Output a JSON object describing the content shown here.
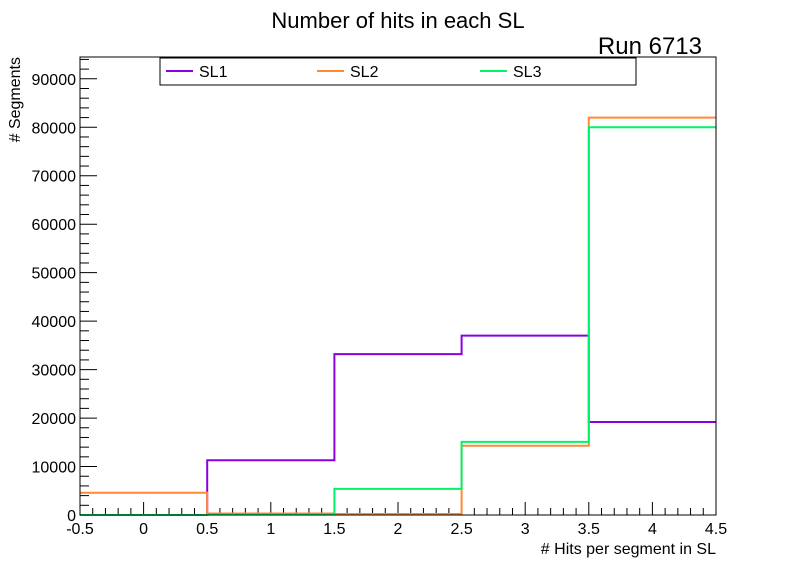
{
  "chart_data": {
    "type": "histogram",
    "title": "Number of hits in each SL",
    "annotation": "Run 6713",
    "xlabel": "# Hits per segment in SL",
    "ylabel": "# Segments",
    "xlim": [
      -0.5,
      4.5
    ],
    "ylim": [
      0,
      94500
    ],
    "x_ticks": [
      "-0.5",
      "0",
      "0.5",
      "1",
      "1.5",
      "2",
      "2.5",
      "3",
      "3.5",
      "4",
      "4.5"
    ],
    "y_ticks": [
      "0",
      "10000",
      "20000",
      "30000",
      "40000",
      "50000",
      "60000",
      "70000",
      "80000",
      "90000"
    ],
    "bin_edges": [
      -0.5,
      0.5,
      1.5,
      2.5,
      3.5,
      4.5
    ],
    "series": [
      {
        "name": "SL1",
        "color": "#8b00e0",
        "values": [
          0,
          11300,
          33200,
          37000,
          19200
        ]
      },
      {
        "name": "SL2",
        "color": "#ff8a33",
        "values": [
          4600,
          300,
          200,
          14300,
          82000
        ]
      },
      {
        "name": "SL3",
        "color": "#00f46a",
        "values": [
          0,
          200,
          5400,
          15100,
          80000
        ]
      }
    ]
  }
}
